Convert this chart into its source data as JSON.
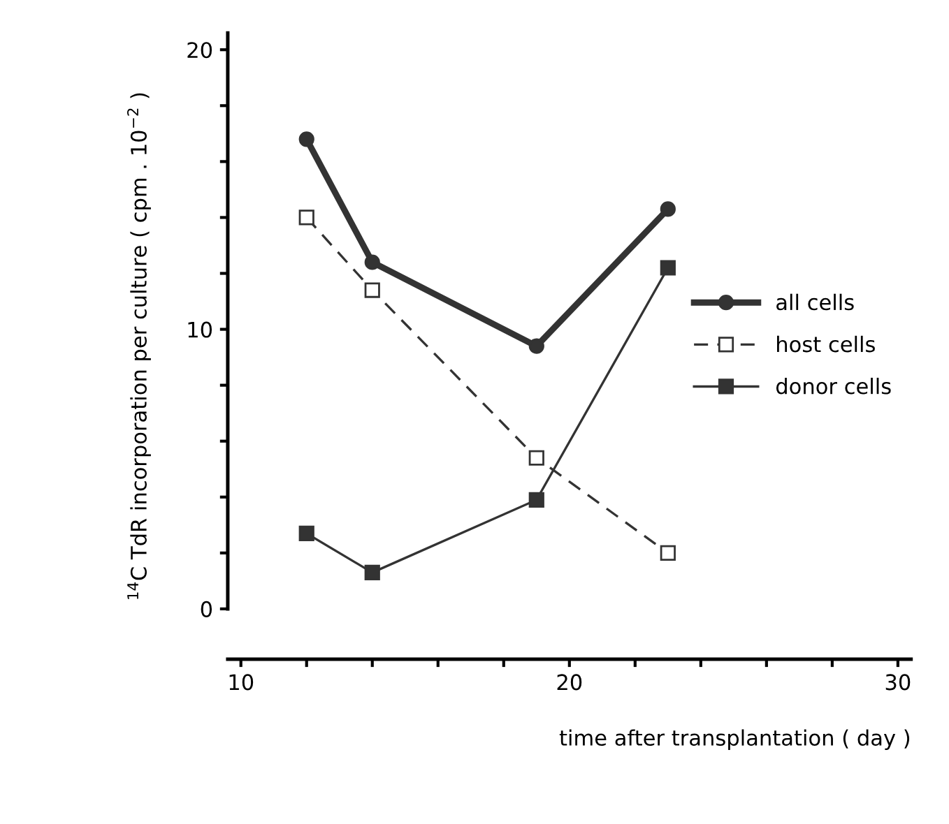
{
  "chart_data": {
    "type": "line",
    "xlabel": "time after transplantation ( day )",
    "ylabel": "$^{14}$C TdR incorporation per culture ( cpm . 10$^{−2}$ )",
    "xlim": [
      9.6,
      30.4
    ],
    "ylim": [
      -1.8,
      20.6
    ],
    "xticks": [
      10,
      {
        "value": 12,
        "label": null
      },
      {
        "value": 14,
        "label": null
      },
      {
        "value": 16,
        "label": null
      },
      {
        "value": 18,
        "label": null
      },
      20,
      {
        "value": 22,
        "label": null
      },
      {
        "value": 24,
        "label": null
      },
      {
        "value": 26,
        "label": null
      },
      {
        "value": 28,
        "label": null
      },
      30
    ],
    "yticks": [
      0,
      {
        "value": 2,
        "label": null
      },
      {
        "value": 4,
        "label": null
      },
      {
        "value": 6,
        "label": null
      },
      {
        "value": 8,
        "label": null
      },
      10,
      {
        "value": 12,
        "label": null
      },
      {
        "value": 14,
        "label": null
      },
      {
        "value": 16,
        "label": null
      },
      {
        "value": 18,
        "label": null
      },
      20
    ],
    "grid": false,
    "legend": "center right",
    "series": [
      {
        "name": "all cells",
        "color": "#333333",
        "marker": "circle",
        "line_style": "solid",
        "x": [
          12,
          14,
          19,
          23
        ],
        "values": [
          16.8,
          12.4,
          9.4,
          14.3
        ]
      },
      {
        "name": "host cells",
        "color": "#333333",
        "marker": "square",
        "line_style": "dashed",
        "x": [
          12,
          14,
          19,
          23
        ],
        "values": [
          14.0,
          11.4,
          5.4,
          2.0
        ]
      },
      {
        "name": "donor cells",
        "color": "#333333",
        "marker": "square",
        "line_style": "solid",
        "x": [
          12,
          14,
          19,
          23
        ],
        "values": [
          2.7,
          1.3,
          3.9,
          12.2
        ]
      }
    ]
  }
}
